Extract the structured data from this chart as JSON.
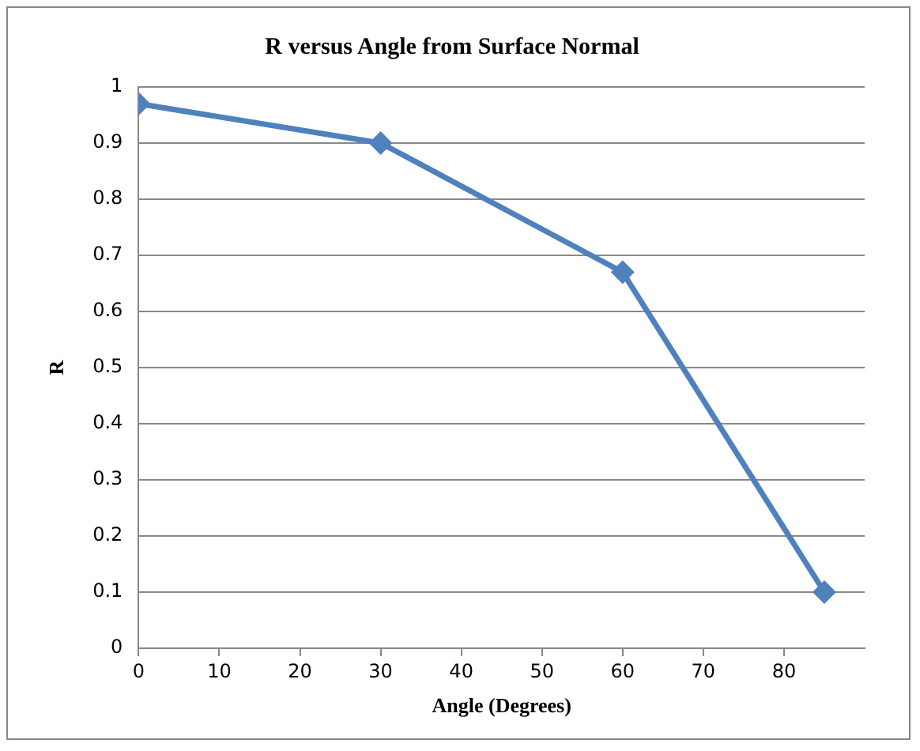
{
  "chart_data": {
    "type": "line",
    "title": "R versus Angle from Surface Normal",
    "xlabel": "Angle (Degrees)",
    "ylabel": "R",
    "x": [
      0,
      30,
      60,
      85
    ],
    "series": [
      {
        "color": "#4f81bd",
        "values": [
          0.97,
          0.9,
          0.67,
          0.1
        ]
      }
    ],
    "xlim": [
      0,
      90
    ],
    "xticks": [
      0,
      10,
      20,
      30,
      40,
      50,
      60,
      70,
      80
    ],
    "ylim": [
      0,
      1
    ],
    "yticks": [
      0,
      0.1,
      0.2,
      0.3,
      0.4,
      0.5,
      0.6,
      0.7,
      0.8,
      0.9,
      1
    ],
    "grid": "y",
    "legend": false,
    "marker": "diamond",
    "line_style": "solid"
  }
}
